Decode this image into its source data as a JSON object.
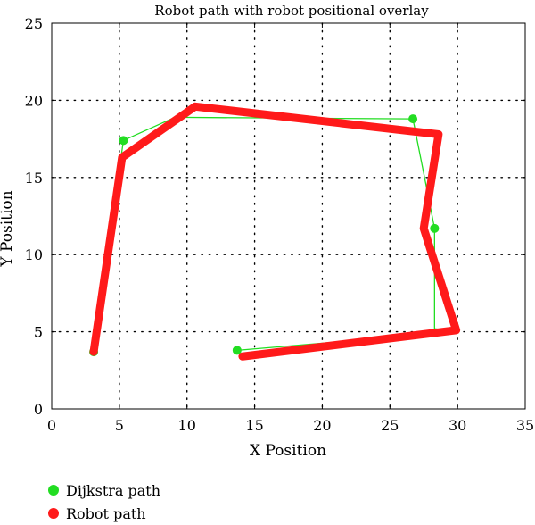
{
  "chart_data": {
    "type": "line",
    "title": "Robot path with robot positional overlay",
    "xlabel": "X Position",
    "ylabel": "Y Position",
    "xlim": [
      0,
      35
    ],
    "ylim": [
      0,
      25
    ],
    "xticks": [
      0,
      5,
      10,
      15,
      20,
      25,
      30,
      35
    ],
    "yticks": [
      0,
      5,
      10,
      15,
      20,
      25
    ],
    "grid": true,
    "legend_position": "bottom-left",
    "series": [
      {
        "name": "Dijkstra path",
        "color": "#22dd22",
        "style": "thin line with circle markers",
        "x": [
          3.1,
          5.3,
          9.1,
          26.7,
          27.9,
          28.3,
          28.3,
          30.0,
          13.7
        ],
        "y": [
          3.7,
          17.4,
          18.9,
          18.8,
          13.5,
          11.7,
          5.2,
          5.0,
          3.8
        ],
        "markers_x": [
          5.3,
          26.7,
          28.3,
          13.7,
          3.1
        ],
        "markers_y": [
          17.4,
          18.8,
          11.7,
          3.8,
          3.7
        ]
      },
      {
        "name": "Robot path",
        "color": "#ff1a1a",
        "style": "thick line",
        "x": [
          3.1,
          5.2,
          10.6,
          28.6,
          27.5,
          29.9,
          14.1
        ],
        "y": [
          3.7,
          16.3,
          19.6,
          17.8,
          11.7,
          5.1,
          3.4
        ]
      }
    ]
  }
}
